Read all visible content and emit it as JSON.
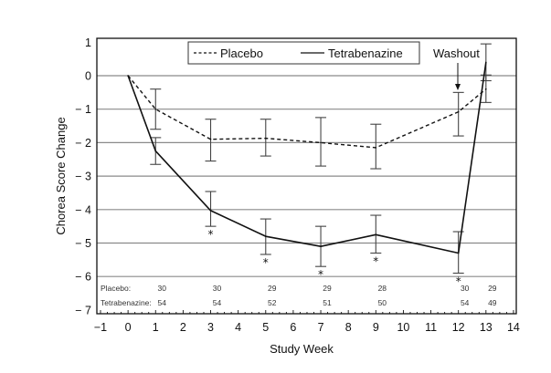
{
  "chart_data": {
    "type": "line",
    "title": "",
    "xlabel": "Study Week",
    "ylabel": "Chorea Score Change",
    "xlim": [
      -1,
      14
    ],
    "ylim": [
      -7,
      1
    ],
    "xticks": [
      -1,
      0,
      1,
      2,
      3,
      4,
      5,
      6,
      7,
      8,
      9,
      10,
      11,
      12,
      13,
      14
    ],
    "yticks": [
      1,
      0,
      -1,
      -2,
      -3,
      -4,
      -5,
      -6,
      -7
    ],
    "ytick_labels": [
      "1",
      "0",
      "− 1",
      "− 2",
      "− 3",
      "− 4",
      "− 5",
      "− 6",
      "− 7"
    ],
    "xtick_labels": [
      "−1",
      "0",
      "1",
      "2",
      "3",
      "4",
      "5",
      "6",
      "7",
      "8",
      "9",
      "10",
      "11",
      "12",
      "13",
      "14"
    ],
    "grid": "horizontal",
    "legend": {
      "placement": "top-center",
      "entries": [
        "Placebo",
        "Tetrabenazine"
      ]
    },
    "series": [
      {
        "name": "Placebo",
        "style": "dashed",
        "x": [
          0,
          1,
          3,
          5,
          7,
          9,
          12,
          13
        ],
        "values": [
          0,
          -1.0,
          -1.9,
          -1.87,
          -2.0,
          -2.15,
          -1.08,
          -0.4
        ],
        "error_low": [
          null,
          -1.6,
          -2.55,
          -2.4,
          -2.7,
          -2.78,
          -1.8,
          -0.8
        ],
        "error_high": [
          null,
          -0.4,
          -1.3,
          -1.3,
          -1.25,
          -1.45,
          -0.5,
          0.02
        ]
      },
      {
        "name": "Tetrabenazine",
        "style": "solid",
        "x": [
          0,
          1,
          3,
          5,
          7,
          9,
          12,
          13
        ],
        "values": [
          0,
          -2.25,
          -4.03,
          -4.8,
          -5.1,
          -4.75,
          -5.3,
          0.4
        ],
        "error_low": [
          null,
          -2.65,
          -4.5,
          -5.34,
          -5.7,
          -5.3,
          -5.9,
          -0.15
        ],
        "error_high": [
          null,
          -1.85,
          -3.46,
          -4.28,
          -4.5,
          -4.17,
          -4.66,
          0.95
        ]
      }
    ],
    "significance_markers": {
      "symbol": "*",
      "weeks": [
        3,
        5,
        7,
        9,
        12
      ]
    },
    "annotations": [
      {
        "text": "Washout",
        "x": 12,
        "arrow": true
      }
    ],
    "n_table": {
      "rows": [
        {
          "label": "Placebo:",
          "weeks": [
            1,
            3,
            5,
            7,
            9,
            12,
            13
          ],
          "values": [
            "30",
            "30",
            "29",
            "29",
            "28",
            "30",
            "29"
          ]
        },
        {
          "label": "Tetrabenazine:",
          "weeks": [
            1,
            3,
            5,
            7,
            9,
            12,
            13
          ],
          "values": [
            "54",
            "54",
            "52",
            "51",
            "50",
            "54",
            "49"
          ]
        }
      ]
    }
  }
}
